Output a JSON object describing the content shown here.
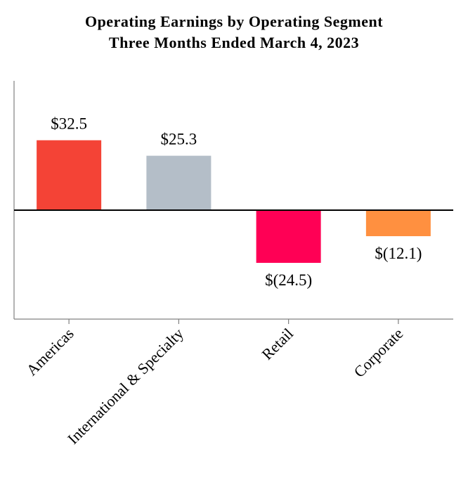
{
  "chart_data": {
    "type": "bar",
    "title": "Operating Earnings by Operating Segment",
    "subtitle": "Three Months Ended March 4, 2023",
    "categories": [
      "Americas",
      "International & Specialty",
      "Retail",
      "Corporate"
    ],
    "values": [
      32.5,
      25.3,
      -24.5,
      -12.1
    ],
    "value_labels": [
      "$32.5",
      "$25.3",
      "$(24.5)",
      "$(12.1)"
    ],
    "colors": [
      "#F44336",
      "#B4BEC8",
      "#FF0055",
      "#FF9040"
    ],
    "ylim": [
      -49,
      59
    ],
    "grid": false,
    "legend": "none"
  }
}
